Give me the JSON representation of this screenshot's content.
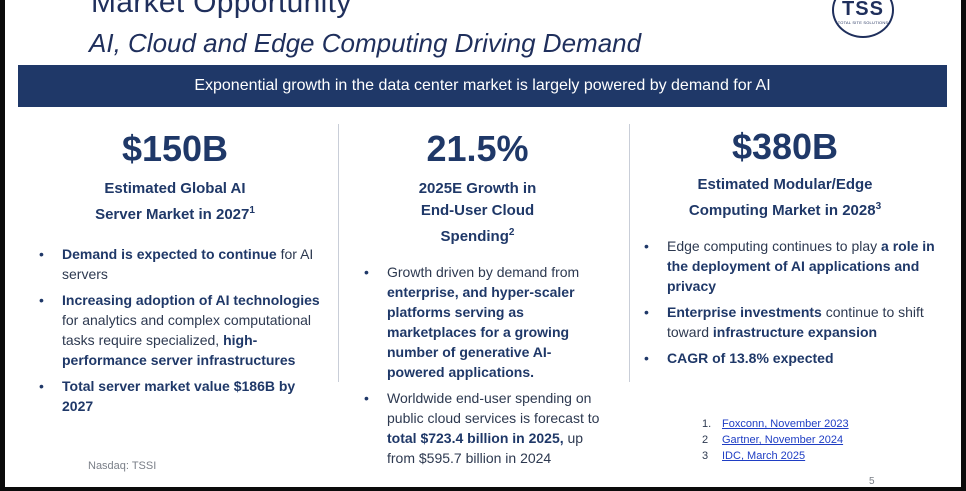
{
  "header": {
    "title": "Market Opportunity",
    "subtitle": "AI, Cloud and Edge Computing Driving Demand",
    "logo_text": "TSS",
    "logo_tagline": "TOTAL SITE SOLUTIONS"
  },
  "banner": "Exponential growth in the data center market is largely powered by demand for AI",
  "columns": [
    {
      "stat": "$150B",
      "heading_line1": "Estimated Global AI",
      "heading_line2": "Server Market in 2027",
      "heading_sup": "1",
      "bullets": [
        [
          [
            "Demand is expected to continue",
            true
          ],
          [
            " for AI servers",
            false
          ]
        ],
        [
          [
            "Increasing adoption of AI technologies",
            true
          ],
          [
            " for analytics and complex computational tasks require specialized, ",
            false
          ],
          [
            "high-performance server infrastructures",
            true
          ]
        ],
        [
          [
            "Total server market value $186B by 2027",
            true
          ]
        ]
      ]
    },
    {
      "stat": "21.5%",
      "heading_line1": "2025E Growth in",
      "heading_line2": "End-User Cloud",
      "heading_line3": "Spending",
      "heading_sup": "2",
      "bullets": [
        [
          [
            "Growth driven by demand from ",
            false
          ],
          [
            "enterprise, and hyper-scaler platforms serving as marketplaces for a growing number of generative AI-powered applications.",
            true
          ]
        ],
        [
          [
            "Worldwide end-user spending on public cloud services is forecast to ",
            false
          ],
          [
            "total $723.4 billion in 2025,",
            true
          ],
          [
            " up from $595.7 billion in 2024",
            false
          ]
        ]
      ]
    },
    {
      "stat": "$380B",
      "heading_line1": "Estimated Modular/Edge",
      "heading_line2": "Computing Market in 2028",
      "heading_sup": "3",
      "bullets": [
        [
          [
            "Edge computing continues to play ",
            false
          ],
          [
            "a role in the deployment of AI applications and privacy",
            true
          ]
        ],
        [
          [
            "Enterprise investments",
            true
          ],
          [
            " continue to shift toward ",
            false
          ],
          [
            "infrastructure expansion",
            true
          ]
        ],
        [
          [
            "CAGR of 13.8% expected",
            true
          ]
        ]
      ]
    }
  ],
  "footnotes": [
    {
      "num": "1.",
      "text": "Foxconn, November 2023"
    },
    {
      "num": "2",
      "text": "Gartner, November 2024"
    },
    {
      "num": "3",
      "text": "IDC, March 2025"
    }
  ],
  "source": "Nasdaq: TSSI",
  "page_number": "5"
}
